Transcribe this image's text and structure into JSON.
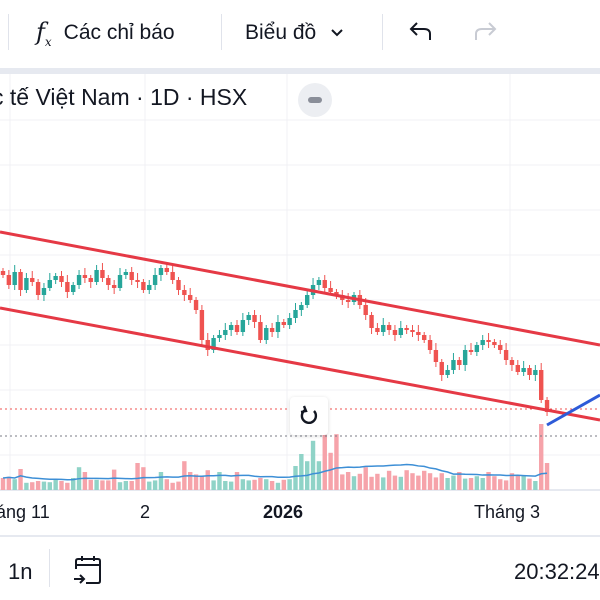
{
  "toolbar": {
    "indicators_label": "Các chỉ báo",
    "chart_type_label": "Biểu đồ"
  },
  "chart_header": {
    "title": "tế Việt Nam · 1D · HSX",
    "prefix": "c"
  },
  "x_axis": {
    "labels": [
      "áng 11",
      "2",
      "2026",
      "Tháng 3"
    ]
  },
  "bottom_bar": {
    "range_label": "1n",
    "time": "20:32:24"
  },
  "colors": {
    "up": "#26a69a",
    "down": "#ef5350",
    "vol_up": "#8fd3c7",
    "vol_down": "#f6a3aa",
    "channel": "#e53945",
    "trend": "#2e5bd8",
    "ma": "#3d8fd6"
  },
  "chart_data": {
    "type": "candlestick",
    "closes": [
      225,
      215,
      228,
      210,
      222,
      218,
      205,
      212,
      220,
      224,
      218,
      208,
      215,
      225,
      222,
      218,
      230,
      222,
      215,
      212,
      225,
      228,
      220,
      218,
      210,
      215,
      225,
      232,
      228,
      220,
      210,
      205,
      200,
      190,
      160,
      150,
      162,
      165,
      170,
      175,
      168,
      180,
      185,
      178,
      160,
      172,
      168,
      178,
      175,
      182,
      190,
      195,
      205,
      215,
      220,
      212,
      208,
      205,
      200,
      198,
      205,
      195,
      185,
      172,
      168,
      175,
      170,
      165,
      172,
      170,
      168,
      165,
      160,
      150,
      138,
      125,
      130,
      140,
      135,
      150,
      148,
      155,
      160,
      158,
      155,
      150,
      140,
      135,
      128,
      132,
      125,
      130,
      100,
      88
    ],
    "volumes": [
      20,
      22,
      18,
      35,
      12,
      13,
      15,
      14,
      13,
      17,
      15,
      12,
      20,
      38,
      30,
      17,
      17,
      16,
      16,
      34,
      13,
      15,
      15,
      45,
      38,
      14,
      16,
      30,
      18,
      12,
      14,
      48,
      30,
      26,
      24,
      33,
      16,
      30,
      15,
      14,
      30,
      18,
      16,
      17,
      20,
      18,
      15,
      12,
      17,
      18,
      40,
      60,
      48,
      82,
      48,
      92,
      62,
      93,
      26,
      30,
      23,
      27,
      38,
      22,
      27,
      21,
      32,
      24,
      22,
      33,
      28,
      24,
      32,
      28,
      21,
      28,
      20,
      24,
      30,
      19,
      20,
      23,
      20,
      30,
      23,
      18,
      16,
      28,
      25,
      24,
      19,
      15,
      110,
      45
    ]
  }
}
